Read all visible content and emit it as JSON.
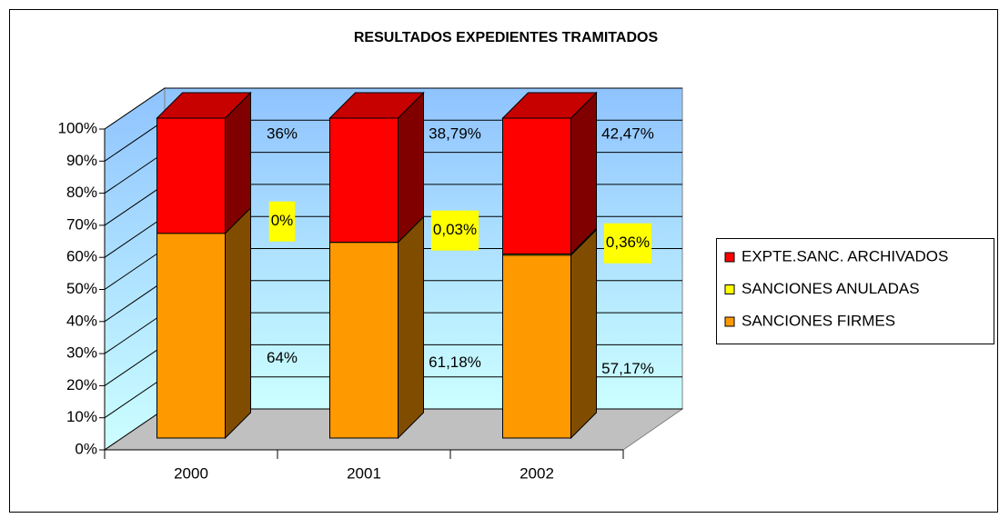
{
  "chart_data": {
    "type": "bar3d_stacked",
    "title": "RESULTADOS EXPEDIENTES TRAMITADOS",
    "categories": [
      "2000",
      "2001",
      "2002"
    ],
    "series": [
      {
        "name": "SANCIONES FIRMES",
        "color": "#ff9900",
        "values": [
          64,
          61.18,
          57.17
        ],
        "value_labels": [
          "64%",
          "61,18%",
          "57,17%"
        ]
      },
      {
        "name": "SANCIONES ANULADAS",
        "color": "#ffff00",
        "values": [
          0,
          0.03,
          0.36
        ],
        "value_labels": [
          "0%",
          "0,03%",
          "0,36%"
        ]
      },
      {
        "name": "EXPTE.SANC. ARCHIVADOS",
        "color": "#ff0000",
        "values": [
          36,
          38.79,
          42.47
        ],
        "value_labels": [
          "36%",
          "38,79%",
          "42,47%"
        ]
      }
    ],
    "ylim": [
      0,
      100
    ],
    "yticks": [
      {
        "value": 0,
        "label": "0%"
      },
      {
        "value": 10,
        "label": "10%"
      },
      {
        "value": 20,
        "label": "20%"
      },
      {
        "value": 30,
        "label": "30%"
      },
      {
        "value": 40,
        "label": "40%"
      },
      {
        "value": 50,
        "label": "50%"
      },
      {
        "value": 60,
        "label": "60%"
      },
      {
        "value": 70,
        "label": "70%"
      },
      {
        "value": 80,
        "label": "80%"
      },
      {
        "value": 90,
        "label": "90%"
      },
      {
        "value": 100,
        "label": "100%"
      }
    ],
    "grid": true,
    "legend": "right"
  }
}
